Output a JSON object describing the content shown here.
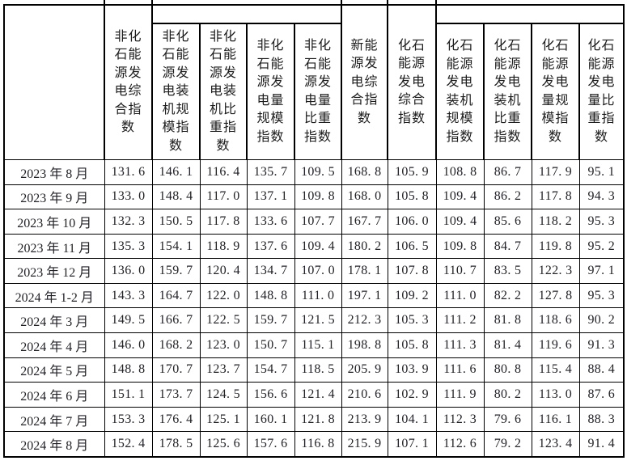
{
  "table": {
    "corner_cell": "",
    "columns": [
      {
        "label": "非化石能源发电综合指数",
        "lines": [
          "非化",
          "石能",
          "源发",
          "电综",
          "合指",
          "数"
        ]
      },
      {
        "label": "非化石能源发电装机规模指数",
        "lines": [
          "非化",
          "石能",
          "源发",
          "电装",
          "机规",
          "模指",
          "数"
        ]
      },
      {
        "label": "非化石能源发电装机比重指数",
        "lines": [
          "非化",
          "石能",
          "源发",
          "电装",
          "机比",
          "重指",
          "数"
        ]
      },
      {
        "label": "非化石能源发电量规模指数",
        "lines": [
          "非化",
          "石能",
          "源发",
          "电量",
          "规模",
          "指数"
        ]
      },
      {
        "label": "非化石能源发电量比重指数",
        "lines": [
          "非化",
          "石能",
          "源发",
          "电量",
          "比重",
          "指数"
        ]
      },
      {
        "label": "新能源发电综合指数",
        "lines": [
          "新能",
          "源发",
          "电综",
          "合指",
          "数"
        ]
      },
      {
        "label": "化石能源发电综合指数",
        "lines": [
          "化石",
          "能源",
          "发电",
          "综合",
          "指数"
        ]
      },
      {
        "label": "化石能源发电装机规模指数",
        "lines": [
          "化石",
          "能源",
          "发电",
          "装机",
          "规模",
          "指数"
        ]
      },
      {
        "label": "化石能源发电装机比重指数",
        "lines": [
          "化石",
          "能源",
          "发电",
          "装机",
          "比重",
          "指数"
        ]
      },
      {
        "label": "化石能源发电量规模指数",
        "lines": [
          "化石",
          "能源",
          "发电",
          "量规",
          "模指",
          "数"
        ]
      },
      {
        "label": "化石能源发电量比重指数",
        "lines": [
          "化石",
          "能源",
          "发电",
          "量比",
          "重指",
          "数"
        ]
      }
    ],
    "rows": [
      {
        "date": "2023 年 8 月",
        "values": [
          "131.6",
          "146.1",
          "116.4",
          "135.7",
          "109.5",
          "168.8",
          "105.9",
          "108.8",
          "86.7",
          "117.9",
          "95.1"
        ]
      },
      {
        "date": "2023 年 9 月",
        "values": [
          "133.0",
          "148.4",
          "117.0",
          "137.1",
          "109.8",
          "168.0",
          "105.8",
          "109.4",
          "86.2",
          "117.8",
          "94.3"
        ]
      },
      {
        "date": "2023 年 10 月",
        "values": [
          "132.3",
          "150.5",
          "117.8",
          "133.6",
          "107.7",
          "167.7",
          "106.0",
          "109.4",
          "85.6",
          "118.2",
          "95.3"
        ]
      },
      {
        "date": "2023 年 11 月",
        "values": [
          "135.3",
          "154.1",
          "118.9",
          "137.6",
          "109.4",
          "180.2",
          "106.5",
          "109.8",
          "84.7",
          "119.8",
          "95.2"
        ]
      },
      {
        "date": "2023 年 12 月",
        "values": [
          "136.0",
          "159.7",
          "120.4",
          "134.7",
          "107.0",
          "178.1",
          "107.8",
          "110.7",
          "83.5",
          "122.3",
          "97.1"
        ]
      },
      {
        "date": "2024 年 1-2 月",
        "values": [
          "143.3",
          "164.7",
          "122.0",
          "148.8",
          "111.0",
          "197.1",
          "109.2",
          "111.0",
          "82.2",
          "127.8",
          "95.3"
        ]
      },
      {
        "date": "2024 年 3 月",
        "values": [
          "149.5",
          "166.7",
          "122.5",
          "159.7",
          "121.5",
          "212.3",
          "105.3",
          "111.2",
          "81.8",
          "118.6",
          "90.2"
        ]
      },
      {
        "date": "2024 年 4 月",
        "values": [
          "146.0",
          "168.2",
          "123.0",
          "150.7",
          "115.1",
          "198.8",
          "105.8",
          "111.3",
          "81.4",
          "119.6",
          "91.3"
        ]
      },
      {
        "date": "2024 年 5 月",
        "values": [
          "148.8",
          "170.7",
          "123.7",
          "154.7",
          "118.5",
          "205.9",
          "103.9",
          "111.6",
          "80.8",
          "115.4",
          "88.4"
        ]
      },
      {
        "date": "2024 年 6 月",
        "values": [
          "151.1",
          "173.7",
          "124.5",
          "156.6",
          "121.4",
          "210.6",
          "102.9",
          "111.9",
          "80.2",
          "113.0",
          "87.6"
        ]
      },
      {
        "date": "2024 年 7 月",
        "values": [
          "153.3",
          "176.4",
          "125.1",
          "160.1",
          "121.8",
          "213.9",
          "104.1",
          "112.3",
          "79.6",
          "116.1",
          "88.3"
        ]
      },
      {
        "date": "2024 年 8 月",
        "values": [
          "152.4",
          "178.5",
          "125.6",
          "157.6",
          "116.8",
          "215.9",
          "107.1",
          "112.6",
          "79.2",
          "123.4",
          "91.4"
        ]
      }
    ],
    "colors": {
      "border": "#000000",
      "text": "#1d1d22",
      "background": "#ffffff"
    }
  }
}
